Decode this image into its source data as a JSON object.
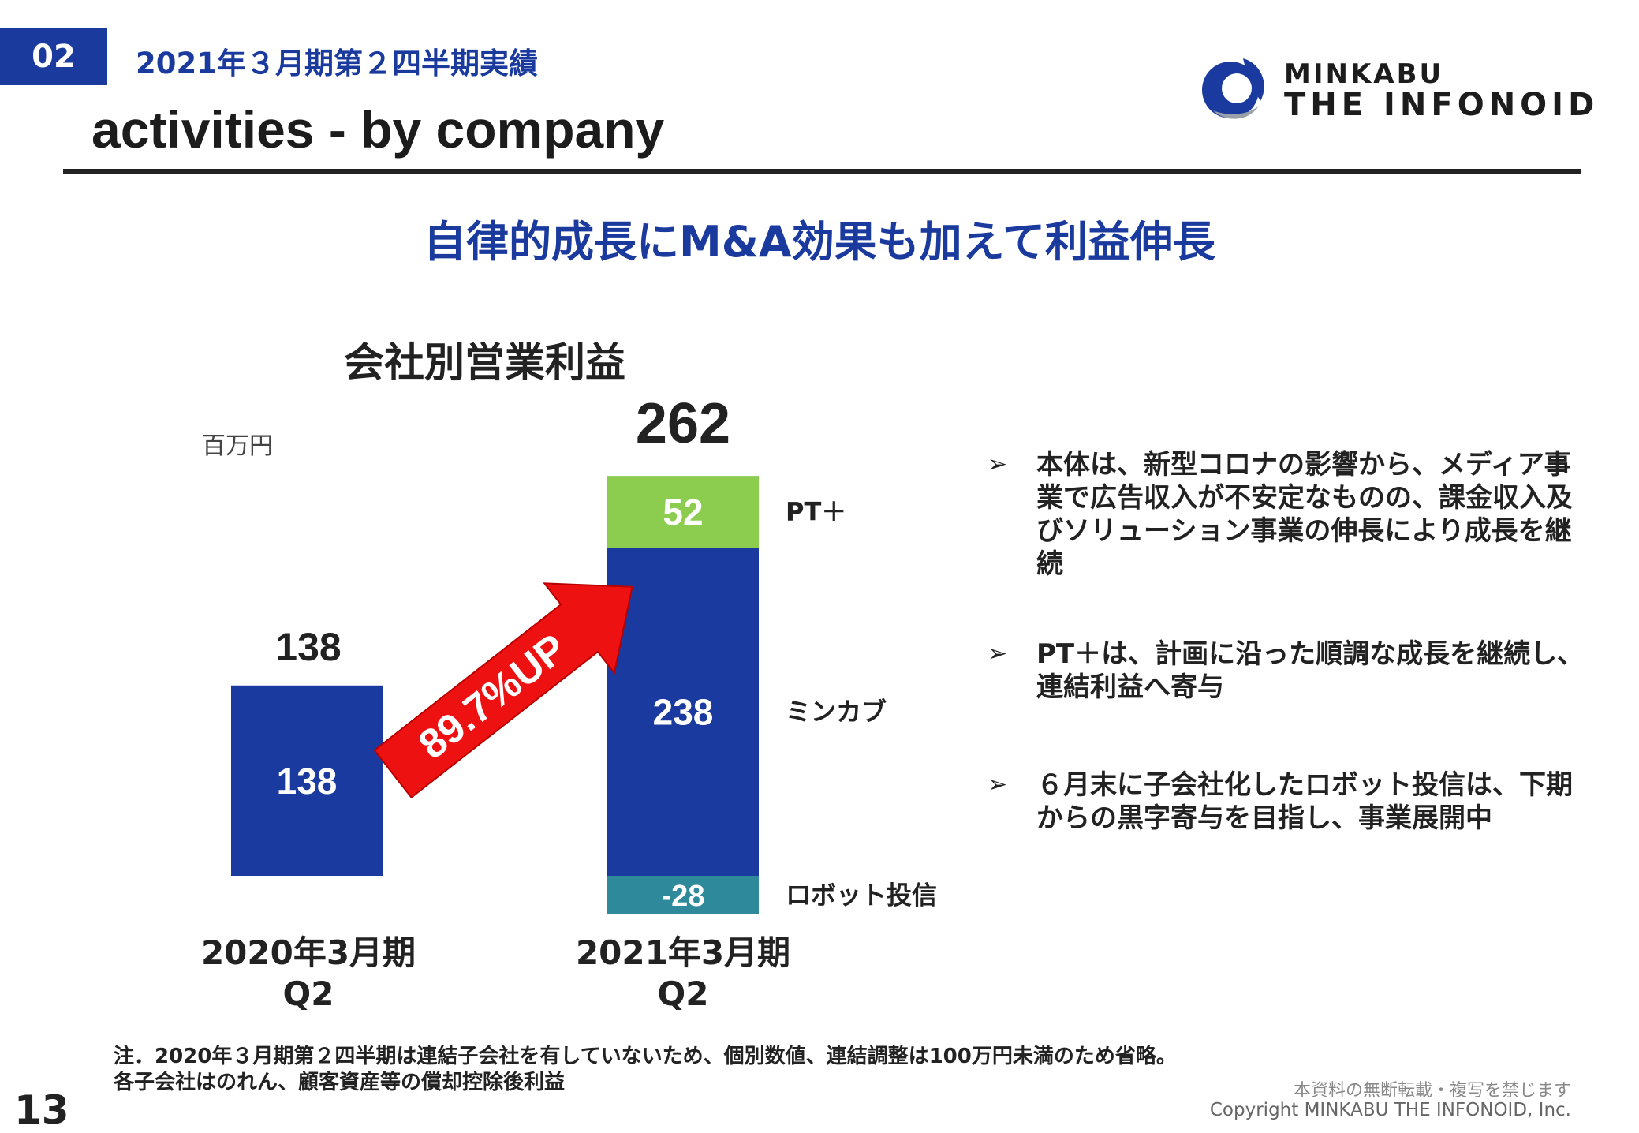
{
  "header": {
    "section_number": "02",
    "section_title": "2021年３月期第２四半期実績",
    "page_title": "activities - by company"
  },
  "brand": {
    "line1": "MINKABU",
    "line2": "THE INFONOID"
  },
  "headline": "自律的成長にM&A効果も加えて利益伸長",
  "chart_data": {
    "type": "bar",
    "title": "会社別営業利益",
    "unit": "百万円",
    "categories": [
      {
        "line1": "2020年3月期",
        "line2": "Q2"
      },
      {
        "line1": "2021年3月期",
        "line2": "Q2"
      }
    ],
    "totals": [
      "138",
      "262"
    ],
    "series": [
      {
        "name": "ロボット投信",
        "values": [
          0,
          -28
        ],
        "labels": [
          "",
          "-28"
        ],
        "color": "#2e8a9a"
      },
      {
        "name": "ミンカブ",
        "values": [
          138,
          238
        ],
        "labels": [
          "138",
          "238"
        ],
        "color": "#1a3aa0"
      },
      {
        "name": "PT＋",
        "values": [
          0,
          52
        ],
        "labels": [
          "",
          "52"
        ],
        "color": "#8ccc4f"
      }
    ],
    "annotation": "89.7%UP",
    "annotation_color": "#ee1111"
  },
  "bullets": [
    "本体は、新型コロナの影響から、メディア事業で広告収入が不安定なものの、課金収入及びソリューション事業の伸長により成長を継続",
    "PT＋は、計画に沿った順調な成長を継続し、連結利益へ寄与",
    "６月末に子会社化したロボット投信は、下期からの黒字寄与を目指し、事業展開中"
  ],
  "bullet_marker": "➢",
  "notes": {
    "line1": "注．2020年３月期第２四半期は連結子会社を有していないため、個別数値、連結調整は100万円未満のため省略。",
    "line2": "各子会社はのれん、顧客資産等の償却控除後利益"
  },
  "page_number": "13",
  "footer": {
    "line1": "本資料の無断転載・複写を禁じます",
    "line2": "Copyright MINKABU THE INFONOID, Inc."
  }
}
